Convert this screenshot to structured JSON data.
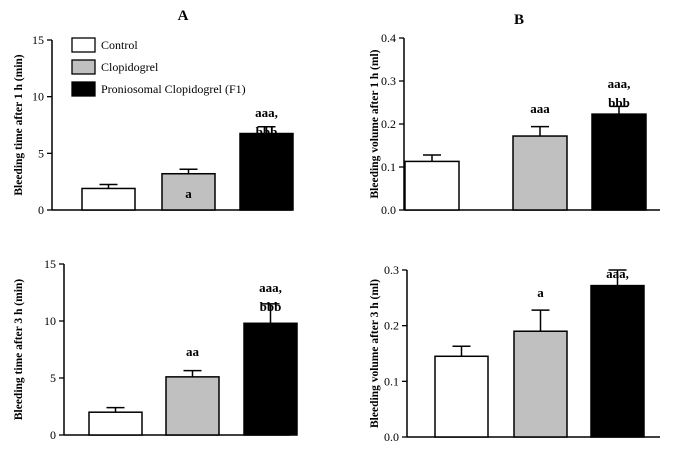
{
  "panel_letters": [
    "A",
    "B"
  ],
  "chart_data": [
    {
      "type": "bar",
      "categories": [
        "Control",
        "Clopidogrel",
        "Proniosomal Clopidogrel (F1)"
      ],
      "values": [
        1.9,
        3.2,
        6.75
      ],
      "errors": [
        0.35,
        0.4,
        0.6
      ],
      "annotations": [
        [],
        [
          "a"
        ],
        [
          "aaa,",
          "bbb"
        ]
      ],
      "ylabel": "Bleeding time after 1 h (min)",
      "ylim": [
        0,
        15
      ],
      "yticks": [
        0,
        5,
        10,
        15
      ],
      "legend": [
        "Control",
        "Clopidogrel",
        "Proniosomal Clopidogrel (F1)"
      ],
      "colors": [
        "#ffffff",
        "#c0c0c0",
        "#000000"
      ]
    },
    {
      "type": "bar",
      "categories": [
        "Control",
        "Clopidogrel",
        "Proniosomal Clopidogrel (F1)"
      ],
      "values": [
        0.113,
        0.172,
        0.223
      ],
      "errors": [
        0.015,
        0.022,
        0.018
      ],
      "annotations": [
        [],
        [
          "aaa"
        ],
        [
          "aaa,",
          "bbb"
        ]
      ],
      "ylabel": "Bleeding volume after 1 h (ml)",
      "ylim": [
        0,
        0.4
      ],
      "yticks": [
        "0.0",
        "0.1",
        "0.2",
        "0.3",
        "0.4"
      ],
      "colors": [
        "#ffffff",
        "#c0c0c0",
        "#000000"
      ]
    },
    {
      "type": "bar",
      "categories": [
        "Control",
        "Clopidogrel",
        "Proniosomal Clopidogrel (F1)"
      ],
      "values": [
        2.0,
        5.1,
        9.8
      ],
      "errors": [
        0.4,
        0.55,
        1.7
      ],
      "annotations": [
        [],
        [
          "aa"
        ],
        [
          "aaa,",
          "bbb"
        ]
      ],
      "ylabel": "Bleeding time after 3 h (min)",
      "ylim": [
        0,
        15
      ],
      "yticks": [
        0,
        5,
        10,
        15
      ],
      "colors": [
        "#ffffff",
        "#c0c0c0",
        "#000000"
      ]
    },
    {
      "type": "bar",
      "categories": [
        "Control",
        "Clopidogrel",
        "Proniosomal Clopidogrel (F1)"
      ],
      "values": [
        0.145,
        0.19,
        0.272
      ],
      "errors": [
        0.018,
        0.038,
        0.028
      ],
      "annotations": [
        [],
        [
          "a"
        ],
        [
          "aaa,",
          "bbb"
        ]
      ],
      "ylabel": "Bleeding volume after 3 h (ml)",
      "ylim": [
        0,
        0.3
      ],
      "yticks": [
        "0.0",
        "0.1",
        "0.2",
        "0.3"
      ],
      "colors": [
        "#ffffff",
        "#c0c0c0",
        "#000000"
      ]
    }
  ]
}
